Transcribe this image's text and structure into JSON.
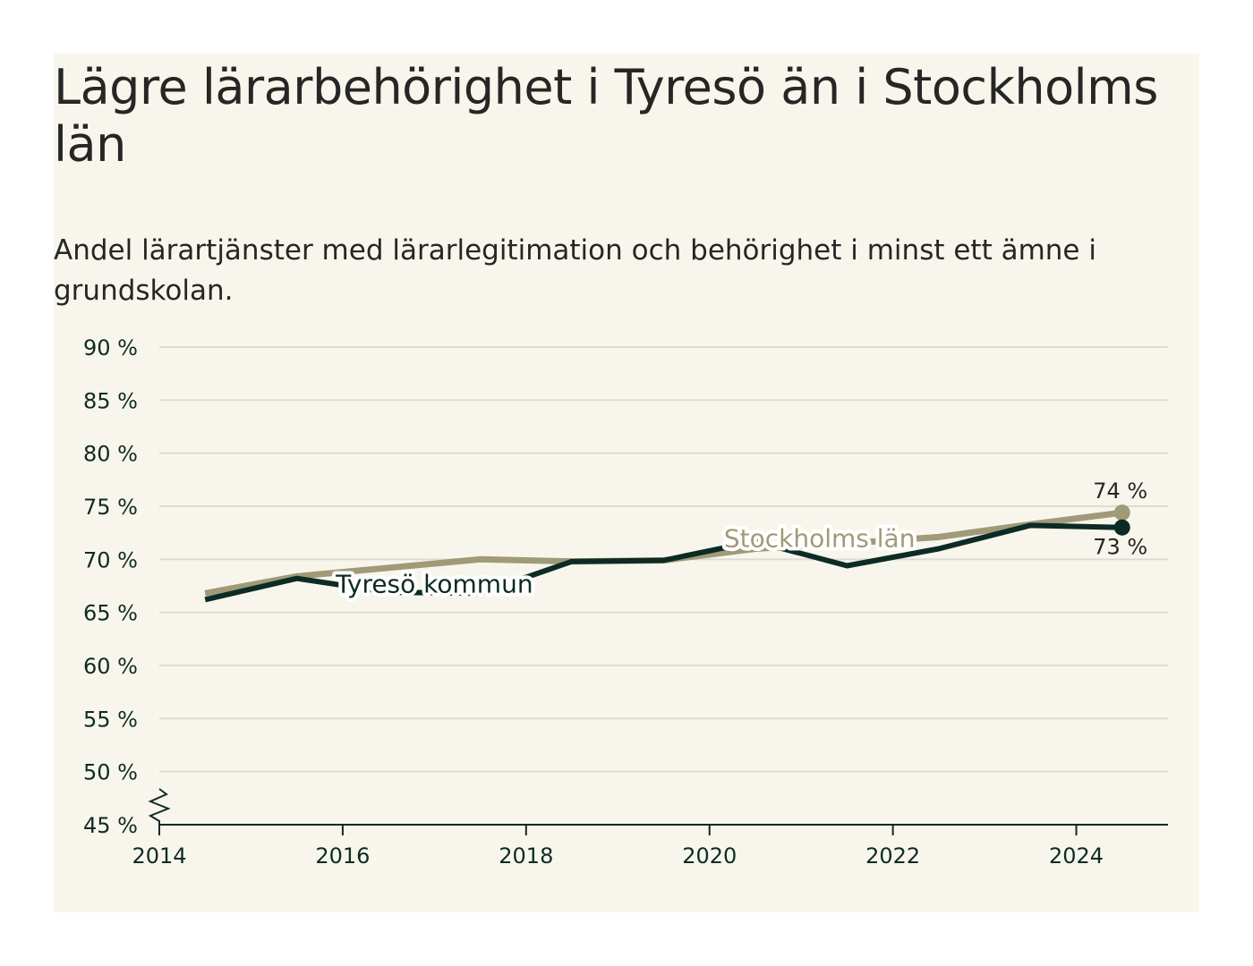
{
  "header": {
    "title": "Lägre lärarbehörighet i Tyresö än i Stockholms län",
    "subtitle": "Andel lärartjänster med lärarlegitimation och behörighet i minst ett ämne i grundskolan."
  },
  "colors": {
    "background": "#f8f6ec",
    "tyreso": "#0d2b25",
    "stockholm": "#a09a78",
    "grid": "#dcdcd6",
    "axis": "#0d2b25"
  },
  "chart_data": {
    "type": "line",
    "title": "Lägre lärarbehörighet i Tyresö än i Stockholms län",
    "subtitle": "Andel lärartjänster med lärarlegitimation och behörighet i minst ett ämne i grundskolan.",
    "xlabel": "",
    "ylabel": "",
    "xlim": [
      2014,
      2025
    ],
    "ylim": [
      45,
      90
    ],
    "y_break": true,
    "y_ticks": [
      45,
      50,
      55,
      60,
      65,
      70,
      75,
      80,
      85,
      90
    ],
    "y_tick_labels": [
      "45 %",
      "50 %",
      "55 %",
      "60 %",
      "65 %",
      "70 %",
      "75 %",
      "80 %",
      "85 %",
      "90 %"
    ],
    "x_ticks": [
      2014,
      2016,
      2018,
      2020,
      2022,
      2024
    ],
    "x_tick_labels": [
      "2014",
      "2016",
      "2018",
      "2020",
      "2022",
      "2024"
    ],
    "grid": true,
    "series": [
      {
        "name": "Stockholms län",
        "x": [
          2014.5,
          2015.5,
          2016.5,
          2017.5,
          2018.5,
          2019.5,
          2020.5,
          2021.5,
          2022.5,
          2023.5,
          2024.5
        ],
        "y": [
          66.8,
          68.4,
          69.2,
          70.0,
          69.8,
          69.9,
          71.0,
          71.5,
          72.1,
          73.3,
          74.4
        ],
        "label_anchor": [
          2021.2,
          72.0
        ],
        "end_label": "74 %"
      },
      {
        "name": "Tyresö kommun",
        "x": [
          2014.5,
          2015.5,
          2016.5,
          2017.5,
          2018.5,
          2019.5,
          2020.5,
          2021.5,
          2022.5,
          2023.5,
          2024.5
        ],
        "y": [
          66.2,
          68.2,
          66.9,
          66.8,
          69.8,
          69.9,
          71.7,
          69.4,
          71.0,
          73.2,
          73.0
        ],
        "label_anchor": [
          2017.0,
          67.7
        ],
        "end_label": "73 %"
      }
    ]
  }
}
